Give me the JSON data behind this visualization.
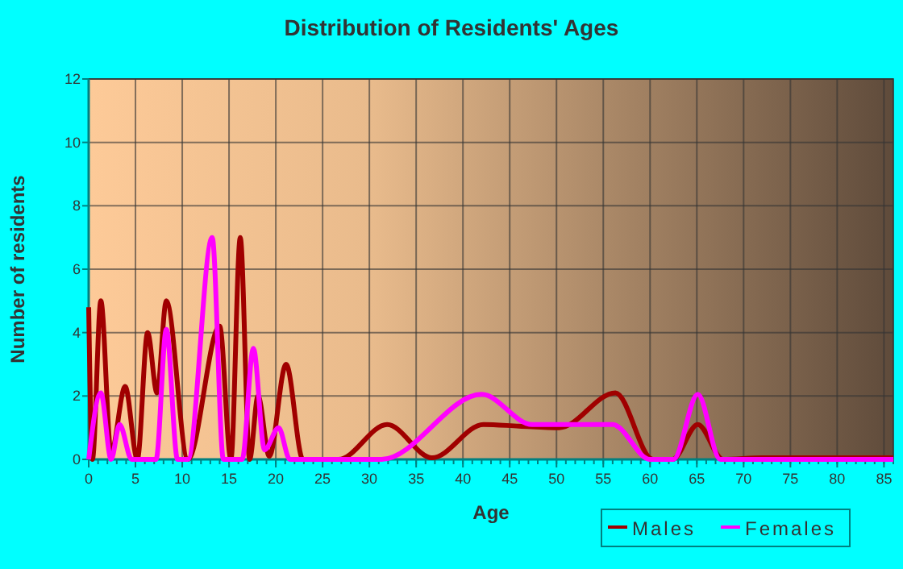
{
  "chart_data": {
    "type": "line",
    "title": "Distribution of Residents' Ages",
    "xlabel": "Age",
    "ylabel": "Number of residents",
    "xlim": [
      0,
      86
    ],
    "ylim": [
      0,
      12
    ],
    "xticks": [
      0,
      5,
      10,
      15,
      20,
      25,
      30,
      35,
      40,
      45,
      50,
      55,
      60,
      65,
      70,
      75,
      80,
      85
    ],
    "yticks": [
      0,
      2,
      4,
      6,
      8,
      10,
      12
    ],
    "grid": true,
    "legend": "bottom right",
    "marker": "none",
    "line_style": "solid",
    "series": [
      {
        "name": "Males",
        "color": "#a00000",
        "x": [
          0,
          0.4,
          1.3,
          2.4,
          3.9,
          5.2,
          6.3,
          7.3,
          8.3,
          10.6,
          14,
          15.2,
          16.2,
          17.2,
          18.1,
          19.3,
          21.1,
          22.9,
          26.7,
          31.9,
          36.7,
          42.2,
          46,
          50.3,
          56.3,
          60.3,
          62.4,
          65.1,
          67.8,
          72,
          86
        ],
        "values": [
          4.8,
          0,
          5,
          0.2,
          2.3,
          0,
          4,
          2.1,
          5,
          0,
          4.2,
          0,
          7,
          0,
          2,
          0.1,
          3,
          0,
          0,
          1.1,
          0.05,
          1.1,
          1.05,
          1,
          2.1,
          0,
          0,
          1.1,
          0,
          0.05,
          0.05
        ]
      },
      {
        "name": "Females",
        "color": "#ff00ff",
        "x": [
          0,
          1.3,
          2.4,
          3.3,
          4.6,
          7.2,
          8.3,
          9.5,
          10.6,
          13.2,
          14.4,
          16.4,
          17.6,
          18.8,
          20.3,
          21.5,
          31.3,
          42,
          47.4,
          56,
          60,
          62.5,
          65.1,
          67.5,
          71,
          86
        ],
        "values": [
          0,
          2.1,
          0,
          1.1,
          0,
          0,
          4.1,
          0,
          0,
          7,
          0,
          0,
          3.5,
          0.3,
          1,
          0,
          0,
          2.05,
          1.1,
          1.1,
          0,
          0,
          2.05,
          0,
          0,
          0
        ]
      }
    ]
  }
}
